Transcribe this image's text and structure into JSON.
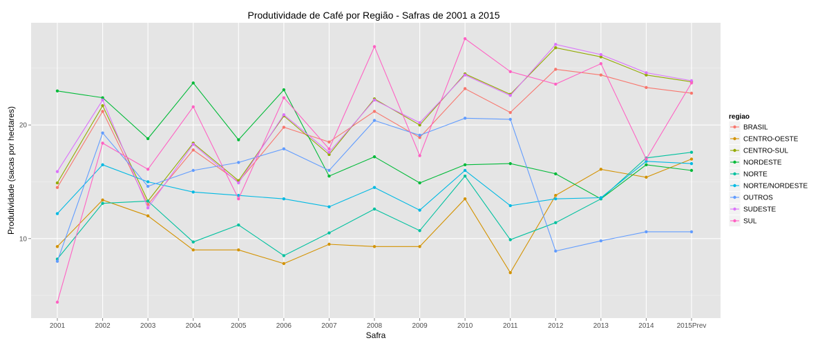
{
  "chart_data": {
    "type": "line",
    "title": "Produtividade de Café por Região - Safras de 2001 a 2015",
    "xlabel": "Safra",
    "ylabel": "Produtividade (sacas por hectares)",
    "categories": [
      "2001",
      "2002",
      "2003",
      "2004",
      "2005",
      "2006",
      "2007",
      "2008",
      "2009",
      "2010",
      "2011",
      "2012",
      "2013",
      "2014",
      "2015Prev"
    ],
    "y_ticks": [
      10,
      20
    ],
    "ylim": [
      3,
      29
    ],
    "grid": true,
    "legend": {
      "title": "regiao",
      "position": "right"
    },
    "series": [
      {
        "name": "BRASIL",
        "color": "#F8766D",
        "values": [
          14.5,
          21.2,
          13.0,
          17.8,
          15.0,
          19.8,
          18.5,
          21.2,
          18.9,
          23.2,
          21.1,
          24.9,
          24.4,
          23.3,
          22.8
        ]
      },
      {
        "name": "CENTRO-OESTE",
        "color": "#D39200",
        "values": [
          9.3,
          13.4,
          12.0,
          9.0,
          9.0,
          7.8,
          9.5,
          9.3,
          9.3,
          13.5,
          7.0,
          13.8,
          16.1,
          15.4,
          17.0
        ]
      },
      {
        "name": "CENTRO-SUL",
        "color": "#93AA00",
        "values": [
          14.9,
          21.7,
          13.3,
          18.4,
          15.1,
          20.8,
          17.4,
          22.3,
          20.0,
          24.5,
          22.7,
          26.8,
          26.0,
          24.4,
          23.8
        ]
      },
      {
        "name": "NORDESTE",
        "color": "#00BA38",
        "values": [
          23.0,
          22.4,
          18.8,
          23.7,
          18.7,
          23.1,
          15.5,
          17.2,
          14.9,
          16.5,
          16.6,
          15.7,
          13.5,
          16.5,
          16.0
        ]
      },
      {
        "name": "NORTE",
        "color": "#00C19F",
        "values": [
          8.2,
          13.1,
          13.3,
          9.7,
          11.2,
          8.5,
          10.5,
          12.6,
          10.7,
          15.5,
          9.9,
          11.4,
          13.5,
          17.1,
          17.6
        ]
      },
      {
        "name": "NORTE/NORDESTE",
        "color": "#00B9E3",
        "values": [
          12.2,
          16.5,
          15.0,
          14.1,
          13.8,
          13.5,
          12.8,
          14.5,
          12.5,
          16.0,
          12.9,
          13.5,
          13.6,
          16.8,
          16.6
        ]
      },
      {
        "name": "OUTROS",
        "color": "#619CFF",
        "values": [
          8.0,
          19.3,
          14.6,
          16.0,
          16.7,
          17.9,
          16.0,
          20.4,
          19.1,
          20.6,
          20.5,
          8.9,
          9.8,
          10.6,
          10.6
        ]
      },
      {
        "name": "SUDESTE",
        "color": "#DB72FB",
        "values": [
          15.9,
          22.2,
          12.7,
          18.3,
          14.9,
          20.9,
          17.6,
          22.2,
          20.2,
          24.4,
          22.6,
          27.1,
          26.2,
          24.6,
          23.9
        ]
      },
      {
        "name": "SUL",
        "color": "#FF61C3",
        "values": [
          4.4,
          18.4,
          16.1,
          21.6,
          13.5,
          22.4,
          17.9,
          26.9,
          17.3,
          27.6,
          24.7,
          23.6,
          25.4,
          17.0,
          23.7
        ]
      }
    ]
  }
}
